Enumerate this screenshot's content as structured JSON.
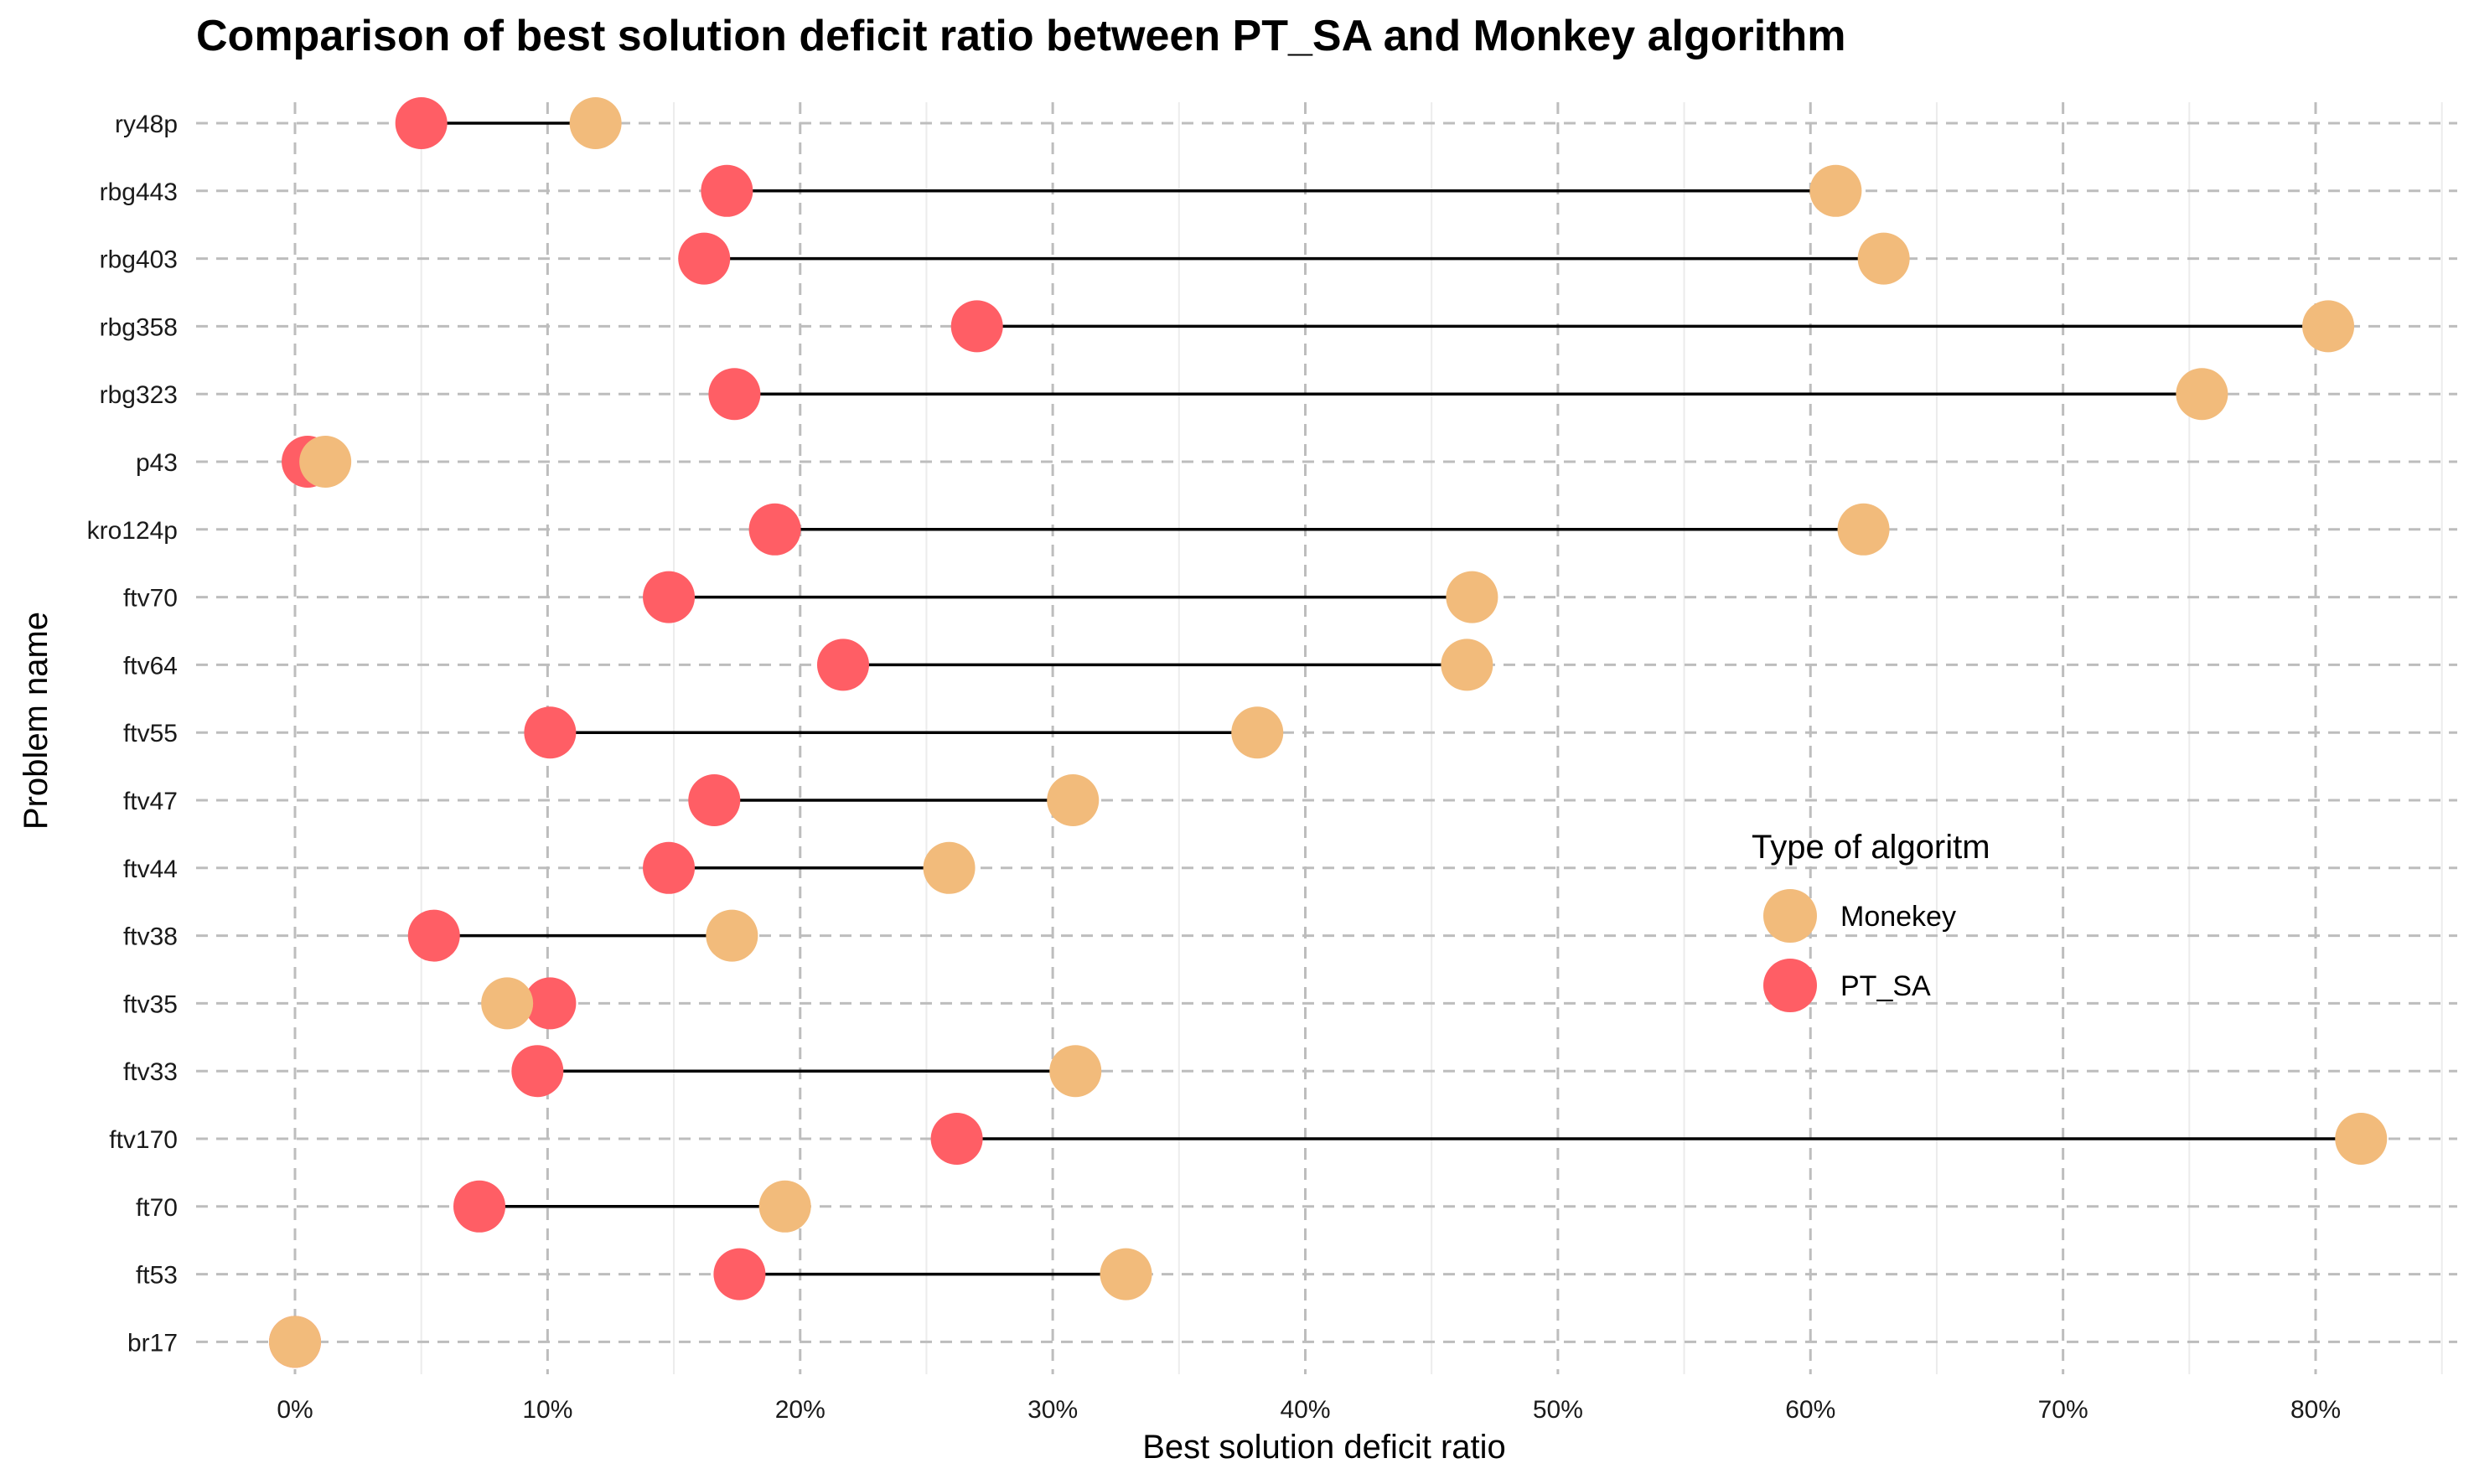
{
  "chart_data": {
    "type": "dumbbell",
    "title": "Comparison of best solution deficit ratio between PT_SA and Monkey algorithm",
    "xlabel": "Best solution deficit ratio",
    "ylabel": "Problem name",
    "xlim": [
      -0.04,
      0.85
    ],
    "x_ticks": [
      0,
      0.1,
      0.2,
      0.3,
      0.4,
      0.5,
      0.6,
      0.7,
      0.8
    ],
    "x_tick_labels": [
      "0%",
      "10%",
      "20%",
      "30%",
      "40%",
      "50%",
      "60%",
      "70%",
      "80%"
    ],
    "grid": true,
    "legend": {
      "title": "Type of algoritm",
      "position": "right",
      "entries": [
        {
          "label": "Monekey",
          "color": "#f2bb7b"
        },
        {
          "label": "PT_SA",
          "color": "#ff5e65"
        }
      ]
    },
    "categories": [
      "ry48p",
      "rbg443",
      "rbg403",
      "rbg358",
      "rbg323",
      "p43",
      "kro124p",
      "ftv70",
      "ftv64",
      "ftv55",
      "ftv47",
      "ftv44",
      "ftv38",
      "ftv35",
      "ftv33",
      "ftv170",
      "ft70",
      "ft53",
      "br17"
    ],
    "series": [
      {
        "name": "PT_SA",
        "color": "#ff5e65",
        "values": [
          0.05,
          0.171,
          0.162,
          0.27,
          0.174,
          0.005,
          0.19,
          0.148,
          0.217,
          0.101,
          0.166,
          0.148,
          0.055,
          0.101,
          0.096,
          0.262,
          0.073,
          0.176,
          0.0
        ]
      },
      {
        "name": "Monekey",
        "color": "#f2bb7b",
        "values": [
          0.119,
          0.61,
          0.629,
          0.805,
          0.755,
          0.012,
          0.621,
          0.466,
          0.464,
          0.381,
          0.308,
          0.259,
          0.173,
          0.084,
          0.309,
          0.818,
          0.194,
          0.329,
          0.0
        ]
      }
    ]
  }
}
